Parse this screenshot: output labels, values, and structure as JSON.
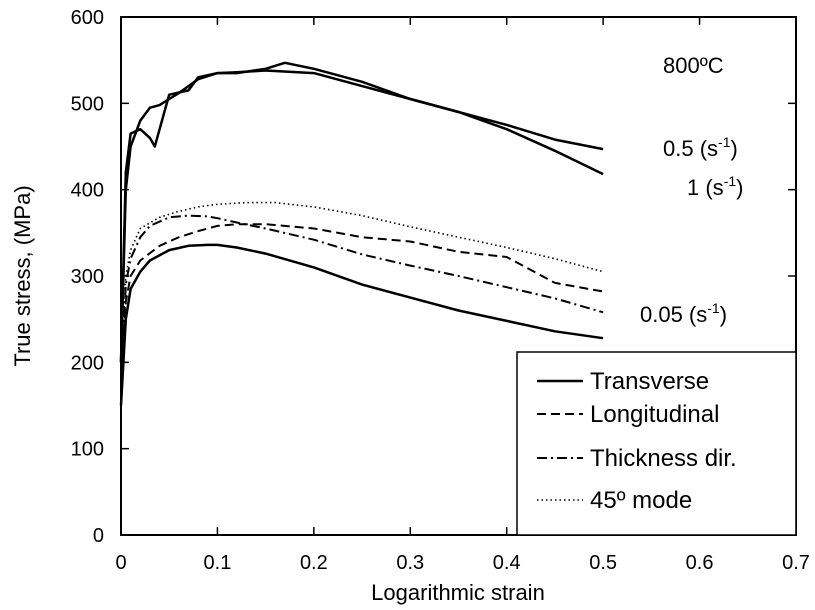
{
  "chart_data": {
    "type": "line",
    "title": "",
    "xlabel": "Logarithmic strain",
    "ylabel": "True stress, (MPa)",
    "xlim": [
      0,
      0.7
    ],
    "ylim": [
      0,
      600
    ],
    "xticks": [
      "0",
      "0.1",
      "0.2",
      "0.3",
      "0.4",
      "0.5",
      "0.6",
      "0.7"
    ],
    "yticks": [
      "0",
      "100",
      "200",
      "300",
      "400",
      "500",
      "600"
    ],
    "grid": false,
    "legend_position": "bottom-right",
    "annotations": [
      {
        "text": "800ºC"
      },
      {
        "text": "0.5 (s",
        "sup": "-1",
        "tail": ")"
      },
      {
        "text": "1 (s",
        "sup": "-1",
        "tail": ")"
      },
      {
        "text": "0.05 (s",
        "sup": "-1",
        "tail": ")"
      }
    ],
    "series": [
      {
        "name": "Transverse",
        "style": "solid",
        "x": [
          0,
          0.005,
          0.01,
          0.02,
          0.03,
          0.05,
          0.07,
          0.09,
          0.1,
          0.12,
          0.15,
          0.2,
          0.25,
          0.3,
          0.35,
          0.4,
          0.45,
          0.5
        ],
        "y": [
          150,
          250,
          285,
          305,
          318,
          330,
          335,
          336,
          336,
          333,
          326,
          310,
          290,
          275,
          260,
          248,
          236,
          228
        ]
      },
      {
        "name": "Longitudinal",
        "style": "dashed",
        "x": [
          0,
          0.005,
          0.01,
          0.02,
          0.04,
          0.06,
          0.08,
          0.1,
          0.12,
          0.15,
          0.2,
          0.25,
          0.3,
          0.35,
          0.4,
          0.42,
          0.45,
          0.5
        ],
        "y": [
          170,
          270,
          300,
          318,
          335,
          345,
          352,
          358,
          360,
          360,
          355,
          345,
          340,
          328,
          322,
          310,
          292,
          282
        ]
      },
      {
        "name": "Thickness dir.",
        "style": "dashdot",
        "x": [
          0,
          0.005,
          0.01,
          0.02,
          0.03,
          0.05,
          0.07,
          0.09,
          0.1,
          0.12,
          0.15,
          0.2,
          0.25,
          0.3,
          0.35,
          0.4,
          0.45,
          0.5
        ],
        "y": [
          160,
          290,
          320,
          345,
          358,
          368,
          370,
          369,
          367,
          362,
          355,
          342,
          325,
          312,
          300,
          287,
          274,
          258
        ]
      },
      {
        "name": "45º mode",
        "style": "dotted",
        "x": [
          0,
          0.005,
          0.01,
          0.02,
          0.04,
          0.06,
          0.08,
          0.1,
          0.13,
          0.16,
          0.2,
          0.25,
          0.3,
          0.35,
          0.4,
          0.45,
          0.5
        ],
        "y": [
          180,
          300,
          330,
          355,
          368,
          375,
          380,
          383,
          385,
          385,
          380,
          370,
          357,
          345,
          333,
          320,
          305
        ]
      },
      {
        "name": "",
        "label": "0.5 (s-1)",
        "style": "solid",
        "x": [
          0,
          0.005,
          0.01,
          0.02,
          0.03,
          0.04,
          0.05,
          0.06,
          0.07,
          0.08,
          0.1,
          0.12,
          0.15,
          0.2,
          0.25,
          0.3,
          0.35,
          0.4,
          0.45,
          0.5
        ],
        "y": [
          200,
          400,
          450,
          480,
          495,
          498,
          505,
          512,
          520,
          528,
          535,
          536,
          538,
          535,
          520,
          505,
          490,
          475,
          458,
          447
        ]
      },
      {
        "name": "",
        "label": "1 (s-1)",
        "style": "solid",
        "x": [
          0,
          0.005,
          0.01,
          0.02,
          0.03,
          0.035,
          0.04,
          0.05,
          0.07,
          0.08,
          0.1,
          0.12,
          0.15,
          0.17,
          0.2,
          0.25,
          0.3,
          0.35,
          0.4,
          0.45,
          0.5
        ],
        "y": [
          200,
          420,
          465,
          470,
          460,
          450,
          470,
          510,
          515,
          530,
          535,
          535,
          540,
          547,
          540,
          525,
          505,
          490,
          470,
          445,
          418
        ]
      }
    ]
  }
}
